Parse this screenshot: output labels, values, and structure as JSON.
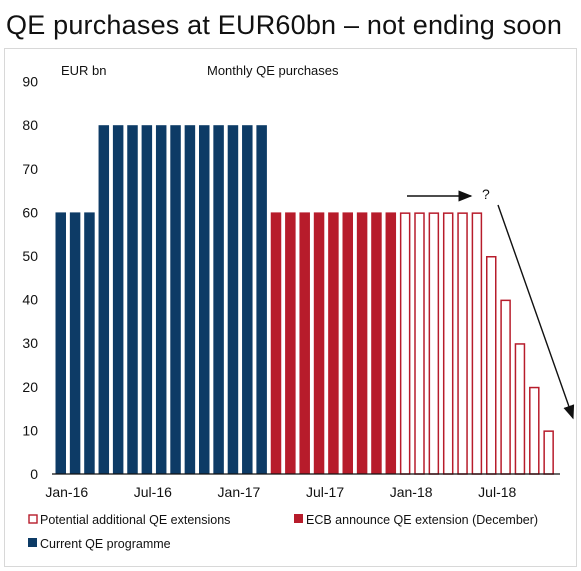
{
  "title": "QE purchases at EUR60bn – not ending soon",
  "chart_data": {
    "type": "bar",
    "subtitle": "Monthly QE purchases",
    "unit_label": "EUR bn",
    "ylim": [
      0,
      90
    ],
    "yticks": [
      "0",
      "10",
      "20",
      "30",
      "40",
      "50",
      "60",
      "70",
      "80",
      "90"
    ],
    "xtick_labels": [
      {
        "label": "Jan-16",
        "index": 0
      },
      {
        "label": "Jul-16",
        "index": 6
      },
      {
        "label": "Jan-17",
        "index": 12
      },
      {
        "label": "Jul-17",
        "index": 18
      },
      {
        "label": "Jan-18",
        "index": 24
      },
      {
        "label": "Jul-18",
        "index": 30
      }
    ],
    "series": [
      {
        "name": "Current QE programme",
        "color": "#0d3b66",
        "style": "filled",
        "start": 0,
        "values": [
          60,
          60,
          60,
          80,
          80,
          80,
          80,
          80,
          80,
          80,
          80,
          80,
          80,
          80,
          80
        ]
      },
      {
        "name": "ECB announce QE extension (December)",
        "color": "#b71c2b",
        "style": "filled",
        "start": 15,
        "values": [
          60,
          60,
          60,
          60,
          60,
          60,
          60,
          60,
          60
        ]
      },
      {
        "name": "Potential additional QE extensions",
        "color": "#b71c2b",
        "style": "outline",
        "start": 24,
        "values": [
          60,
          60,
          60,
          60,
          60,
          60,
          50,
          40,
          30,
          20,
          10
        ]
      }
    ],
    "annotation": "?",
    "legend": [
      {
        "label": "Potential additional QE extensions",
        "style": "outline",
        "color": "#b71c2b"
      },
      {
        "label": "ECB announce QE extension (December)",
        "style": "filled",
        "color": "#b71c2b"
      },
      {
        "label": "Current QE programme",
        "style": "filled",
        "color": "#0d3b66"
      }
    ]
  }
}
